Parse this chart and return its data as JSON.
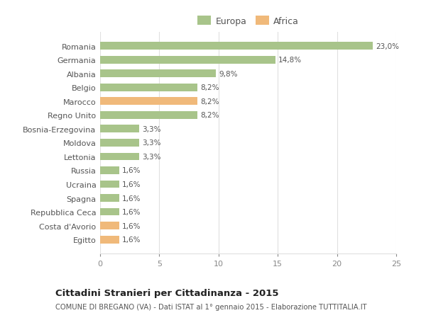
{
  "categories": [
    "Egitto",
    "Costa d'Avorio",
    "Repubblica Ceca",
    "Spagna",
    "Ucraina",
    "Russia",
    "Lettonia",
    "Moldova",
    "Bosnia-Erzegovina",
    "Regno Unito",
    "Marocco",
    "Belgio",
    "Albania",
    "Germania",
    "Romania"
  ],
  "values": [
    1.6,
    1.6,
    1.6,
    1.6,
    1.6,
    1.6,
    3.3,
    3.3,
    3.3,
    8.2,
    8.2,
    8.2,
    9.8,
    14.8,
    23.0
  ],
  "labels": [
    "1,6%",
    "1,6%",
    "1,6%",
    "1,6%",
    "1,6%",
    "1,6%",
    "3,3%",
    "3,3%",
    "3,3%",
    "8,2%",
    "8,2%",
    "8,2%",
    "9,8%",
    "14,8%",
    "23,0%"
  ],
  "colors": [
    "#f0b97a",
    "#f0b97a",
    "#a8c48a",
    "#a8c48a",
    "#a8c48a",
    "#a8c48a",
    "#a8c48a",
    "#a8c48a",
    "#a8c48a",
    "#a8c48a",
    "#f0b97a",
    "#a8c48a",
    "#a8c48a",
    "#a8c48a",
    "#a8c48a"
  ],
  "legend_europa_color": "#a8c48a",
  "legend_africa_color": "#f0b97a",
  "xlim": [
    0,
    25
  ],
  "xticks": [
    0,
    5,
    10,
    15,
    20,
    25
  ],
  "title": "Cittadini Stranieri per Cittadinanza - 2015",
  "subtitle": "COMUNE DI BREGANO (VA) - Dati ISTAT al 1° gennaio 2015 - Elaborazione TUTTITALIA.IT",
  "background_color": "#ffffff",
  "grid_color": "#e0e0e0",
  "bar_height": 0.55,
  "text_color": "#555555",
  "title_color": "#222222"
}
